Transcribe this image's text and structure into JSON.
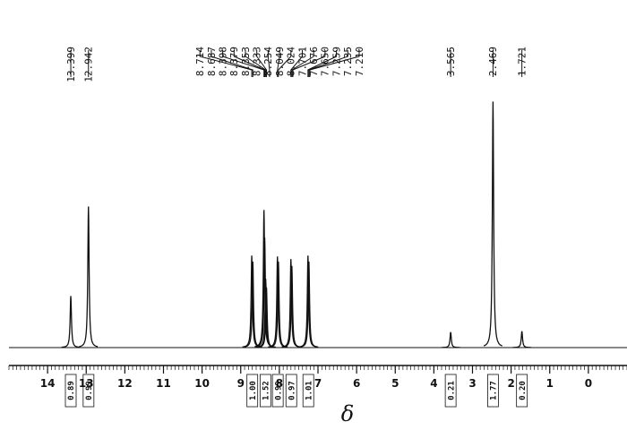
{
  "chart_data": {
    "type": "spectrum",
    "x_label": "δ",
    "xlim": [
      15.0,
      -1.0
    ],
    "xticks": [
      14,
      13,
      12,
      11,
      10,
      9,
      8,
      7,
      6,
      5,
      4,
      3,
      2,
      1,
      0
    ],
    "ylim": [
      0,
      300
    ],
    "color": "#111111",
    "x": [
      13.399,
      12.942,
      8.714,
      8.687,
      8.398,
      8.379,
      8.353,
      8.333,
      8.049,
      8.024,
      7.701,
      7.676,
      7.259,
      7.235,
      3.565,
      2.469,
      1.721
    ],
    "values": [
      60,
      164,
      107,
      100,
      160,
      128,
      80,
      70,
      106,
      100,
      103,
      95,
      107,
      100,
      18,
      286,
      19
    ],
    "peak_labels": [
      13.399,
      12.942,
      8.714,
      8.687,
      8.398,
      8.379,
      8.353,
      8.333,
      8.254,
      8.049,
      8.024,
      7.701,
      7.676,
      {
        "value": 7.65,
        "label": "7.650"
      },
      7.259,
      7.235,
      {
        "value": 7.21,
        "label": "7.210"
      },
      3.565,
      2.469,
      1.721
    ],
    "integrals": [
      {
        "x": 13.4,
        "value": 0.89,
        "label": "0.89"
      },
      {
        "x": 12.94,
        "value": 0.99,
        "label": "0.99"
      },
      {
        "x": 8.7,
        "value": 1,
        "label": "1.00"
      },
      {
        "x": 8.36,
        "value": 1.52,
        "label": "1.52"
      },
      {
        "x": 8.04,
        "value": 0.99,
        "label": "0.99"
      },
      {
        "x": 7.69,
        "value": 0.97,
        "label": "0.97"
      },
      {
        "x": 7.25,
        "value": 1.01,
        "label": "1.01"
      },
      {
        "x": 3.565,
        "value": 0.21,
        "label": "0.21"
      },
      {
        "x": 2.469,
        "value": 1.77,
        "label": "1.77"
      },
      {
        "x": 1.721,
        "value": 0.2,
        "label": "0.20"
      }
    ]
  }
}
